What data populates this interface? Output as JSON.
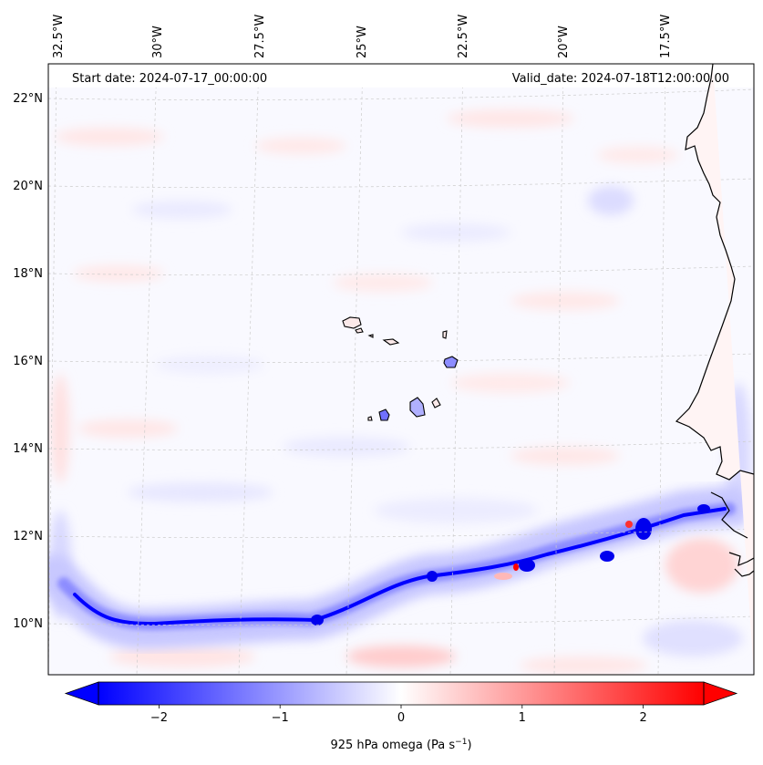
{
  "header": {
    "start_date": "Start date: 2024-07-17_00:00:00",
    "valid_date": "Valid_date: 2024-07-18T12:00:00.00"
  },
  "longitude_ticks": [
    "32.5°W",
    "30°W",
    "27.5°W",
    "25°W",
    "22.5°W",
    "20°W",
    "17.5°W"
  ],
  "latitude_ticks": [
    "22°N",
    "20°N",
    "18°N",
    "16°N",
    "14°N",
    "12°N",
    "10°N"
  ],
  "colorbar": {
    "ticks": [
      "−2",
      "−1",
      "0",
      "1",
      "2"
    ],
    "tick_values": [
      -2,
      -1,
      0,
      1,
      2
    ],
    "range": [
      -2.5,
      2.5
    ],
    "label_prefix": "925 hPa omega (Pa s",
    "label_exp": "−1",
    "label_suffix": ")",
    "colormap": "bwr",
    "negative_color": "#0000ff",
    "positive_color": "#ff0000"
  },
  "colors": {
    "coastline": "#000000",
    "gridline": "#c8c8c8",
    "background_field": "#f8f8ff"
  }
}
